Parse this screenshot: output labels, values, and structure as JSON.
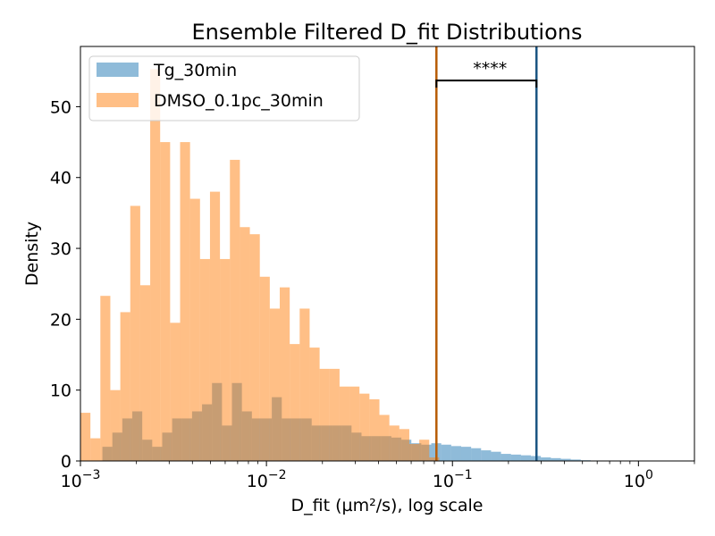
{
  "chart_data": {
    "type": "bar",
    "title": "Ensemble Filtered D_fit Distributions",
    "xlabel": "D_fit (µm²/s), log scale",
    "ylabel": "Density",
    "xscale": "log",
    "xlim": [
      0.001,
      2.0
    ],
    "ylim": [
      0,
      58.5
    ],
    "yticks": [
      0,
      10,
      20,
      30,
      40,
      50
    ],
    "xticks": [
      {
        "base": "10",
        "exp": "−3",
        "value": 0.001
      },
      {
        "base": "10",
        "exp": "−2",
        "value": 0.01
      },
      {
        "base": "10",
        "exp": "−1",
        "value": 0.1
      },
      {
        "base": "10",
        "exp": "0",
        "value": 1
      }
    ],
    "legend_position": "top-left",
    "series": [
      {
        "name": "Tg_30min",
        "color": "#1f77b4",
        "opacity": 0.5,
        "bin_start": 0.00116,
        "bin_ratio": 1.1313,
        "values": [
          0,
          2,
          4,
          6,
          7,
          3,
          2,
          4,
          6,
          6,
          7,
          8,
          11,
          5,
          11,
          7,
          6,
          6,
          9,
          6,
          6,
          6,
          5,
          5,
          5,
          5,
          4,
          3.5,
          3.5,
          3.5,
          3.3,
          3,
          2.5,
          2.3,
          2.5,
          2.3,
          2.1,
          2.0,
          1.8,
          1.5,
          1.3,
          1.0,
          0.9,
          0.8,
          0.7,
          0.5,
          0.4,
          0.3,
          0.2,
          0.1
        ]
      },
      {
        "name": "DMSO_0.1pc_30min",
        "color": "#ff7f0e",
        "opacity": 0.5,
        "bin_start": 0.001,
        "bin_ratio": 1.1313,
        "values": [
          6.8,
          3.2,
          23.3,
          10,
          21,
          36,
          24.8,
          55.3,
          45,
          19.5,
          45,
          37,
          28.5,
          38,
          28.5,
          42.5,
          33,
          32,
          26,
          21.5,
          24.5,
          16.5,
          21.5,
          16,
          13,
          13,
          10.5,
          10.5,
          9.5,
          8.7,
          6.5,
          5,
          4.5,
          2.4,
          3,
          0.5
        ]
      }
    ],
    "vlines": [
      {
        "series": "DMSO_0.1pc_30min",
        "x": 0.082,
        "color": "#b85c06"
      },
      {
        "series": "Tg_30min",
        "x": 0.283,
        "color": "#1a5582"
      }
    ],
    "significance": {
      "label": "****",
      "x1": 0.082,
      "x2": 0.283,
      "y": 53.7
    }
  }
}
